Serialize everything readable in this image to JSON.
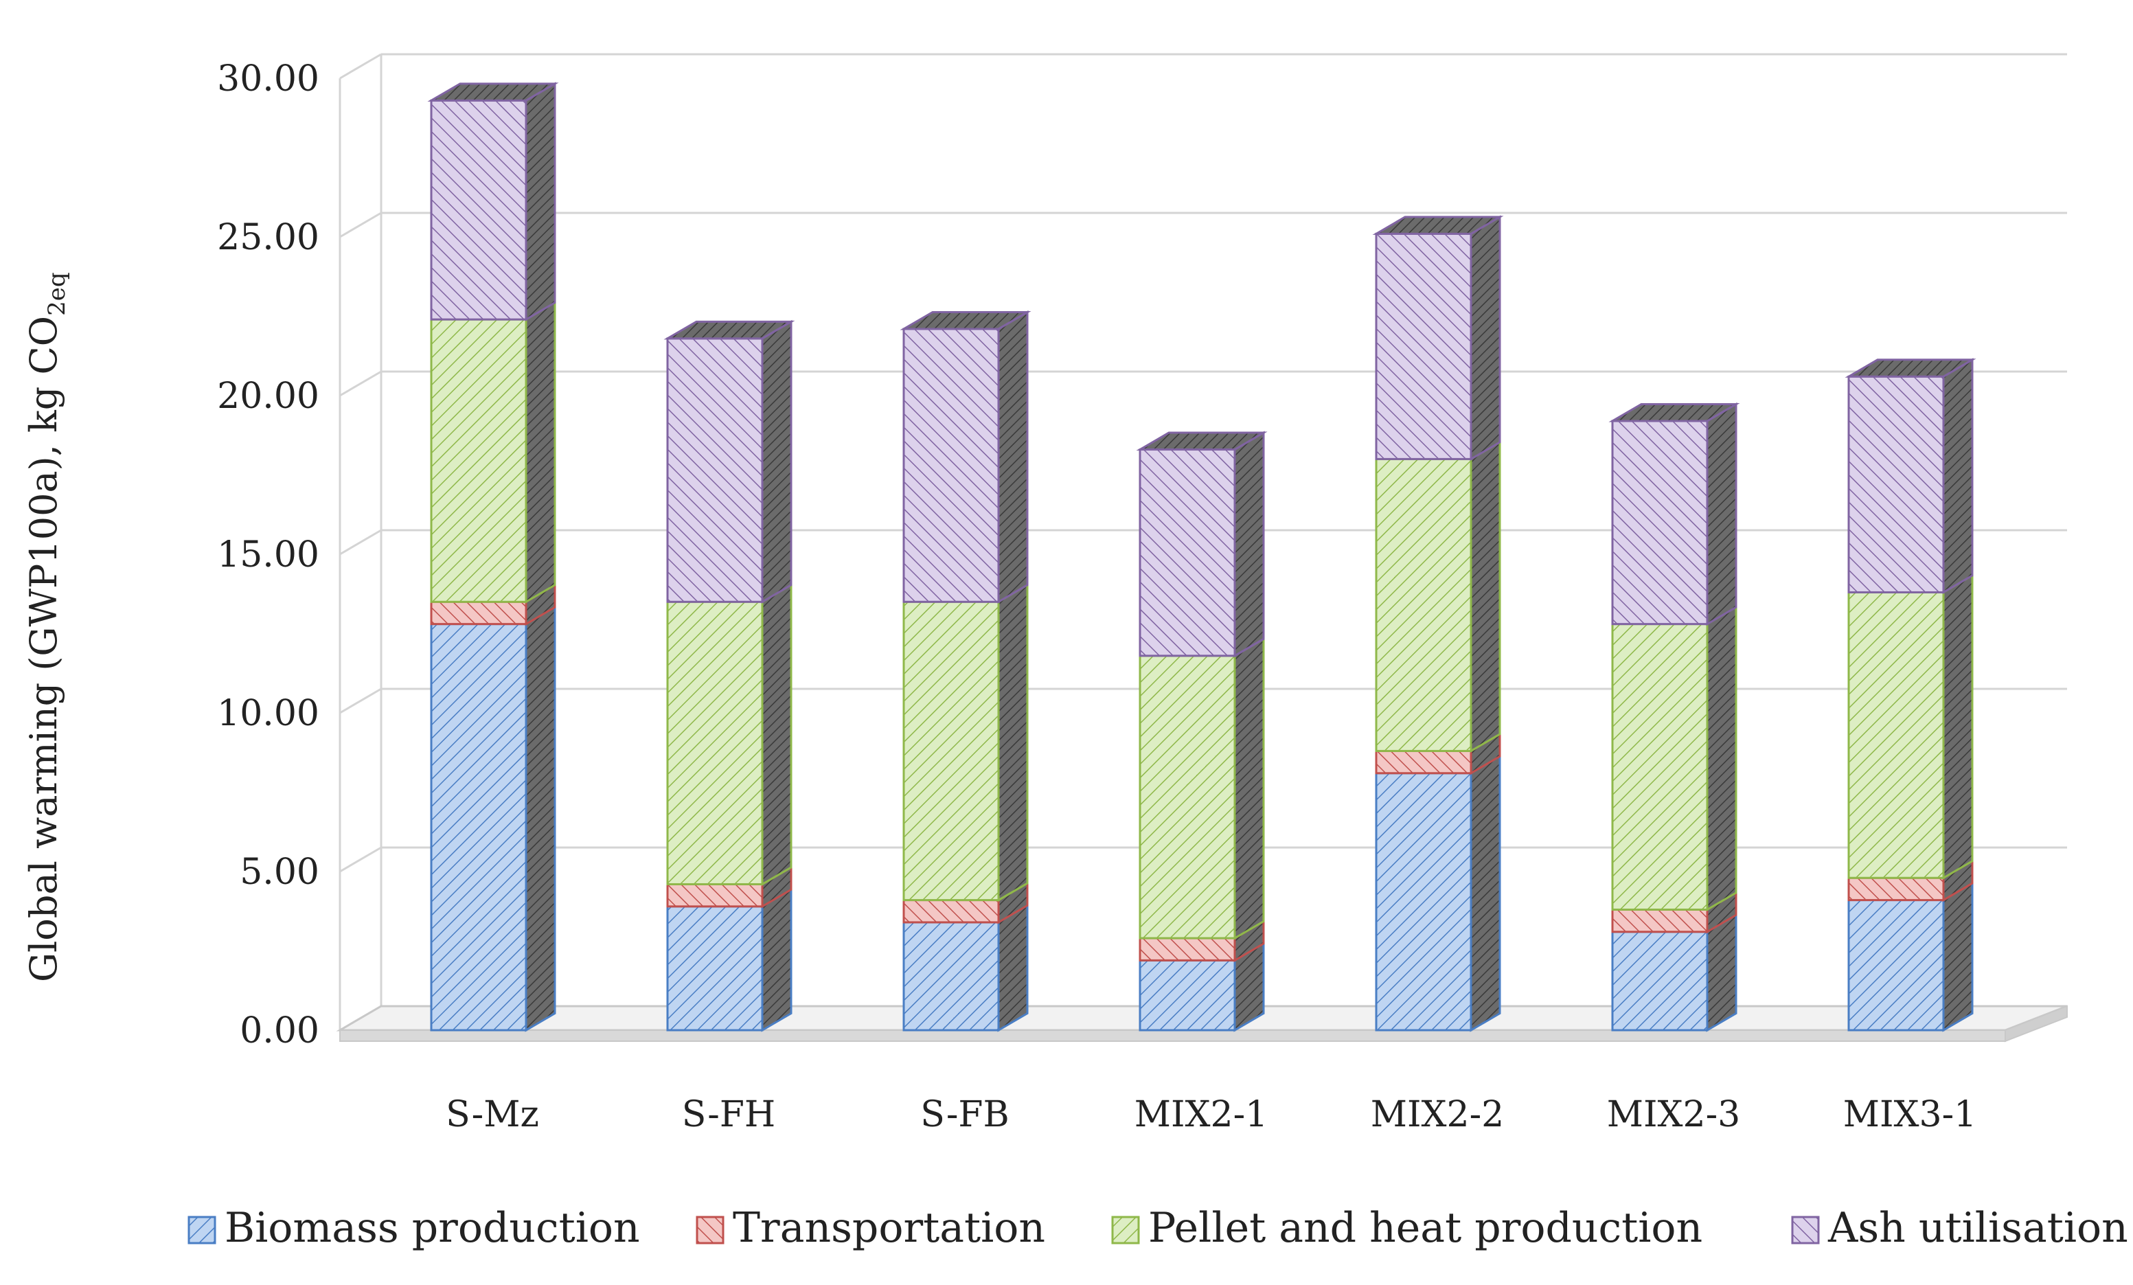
{
  "chart_data": {
    "type": "bar",
    "stacked": true,
    "three_d": true,
    "title": "",
    "ylabel_main": "Global warming (GWP100a), kg CO",
    "ylabel_sub": "2eq",
    "ylim": [
      0,
      30
    ],
    "yticks": [
      "0.00",
      "5.00",
      "10.00",
      "15.00",
      "20.00",
      "25.00",
      "30.00"
    ],
    "ytick_values": [
      0,
      5,
      10,
      15,
      20,
      25,
      30
    ],
    "categories": [
      "S-Mz",
      "S-FH",
      "S-FB",
      "MIX2-1",
      "MIX2-2",
      "MIX2-3",
      "MIX3-1"
    ],
    "series": [
      {
        "name": "Biomass production",
        "color": "#4A7EC4",
        "fill": "#BFD5F2",
        "values": [
          12.8,
          3.9,
          3.4,
          2.2,
          8.1,
          3.1,
          4.1
        ]
      },
      {
        "name": "Transportation",
        "color": "#C0504D",
        "fill": "#F4C7C5",
        "values": [
          0.7,
          0.7,
          0.7,
          0.7,
          0.7,
          0.7,
          0.7
        ]
      },
      {
        "name": "Pellet and heat production",
        "color": "#8FB84A",
        "fill": "#DDEEC3",
        "values": [
          8.9,
          8.9,
          9.4,
          8.9,
          9.2,
          9.0,
          9.0
        ]
      },
      {
        "name": "Ash utilisation",
        "color": "#8064A2",
        "fill": "#DDD2EC",
        "values": [
          6.9,
          8.3,
          8.6,
          6.5,
          7.1,
          6.4,
          6.8
        ]
      }
    ],
    "legend_position": "bottom"
  }
}
